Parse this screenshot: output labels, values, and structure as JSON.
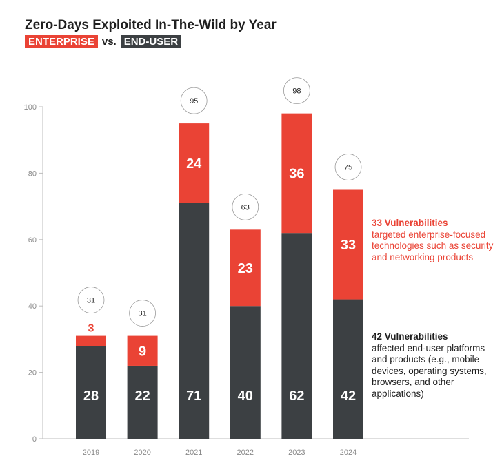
{
  "title": "Zero-Days Exploited In-The-Wild by Year",
  "subtitle": {
    "enterprise_tag": "ENTERPRISE",
    "vs": "vs.",
    "enduser_tag": "END-USER"
  },
  "colors": {
    "enterprise": "#ea4335",
    "enduser": "#3c4043",
    "axis": "#bdbdbd",
    "tick_text": "#8a8a8a"
  },
  "chart_data": {
    "type": "bar",
    "stacked": true,
    "categories": [
      "2019",
      "2020",
      "2021",
      "2022",
      "2023",
      "2024"
    ],
    "series": [
      {
        "name": "END-USER",
        "values": [
          28,
          22,
          71,
          40,
          62,
          42
        ]
      },
      {
        "name": "ENTERPRISE",
        "values": [
          3,
          9,
          24,
          23,
          36,
          33
        ]
      }
    ],
    "totals": [
      31,
      31,
      95,
      63,
      98,
      75
    ],
    "ylim": [
      0,
      100
    ],
    "yticks": [
      0,
      20,
      40,
      60,
      80,
      100
    ],
    "xlabel": "",
    "ylabel": "",
    "grid": false
  },
  "annotations": {
    "enterprise": {
      "headline": "33 Vulnerabilities",
      "body": "targeted enterprise-focused technologies such as security and networking products"
    },
    "enduser": {
      "headline": "42 Vulnerabilities",
      "body": "affected end-user platforms and products (e.g., mobile devices, operating systems, browsers, and other applications)"
    }
  }
}
